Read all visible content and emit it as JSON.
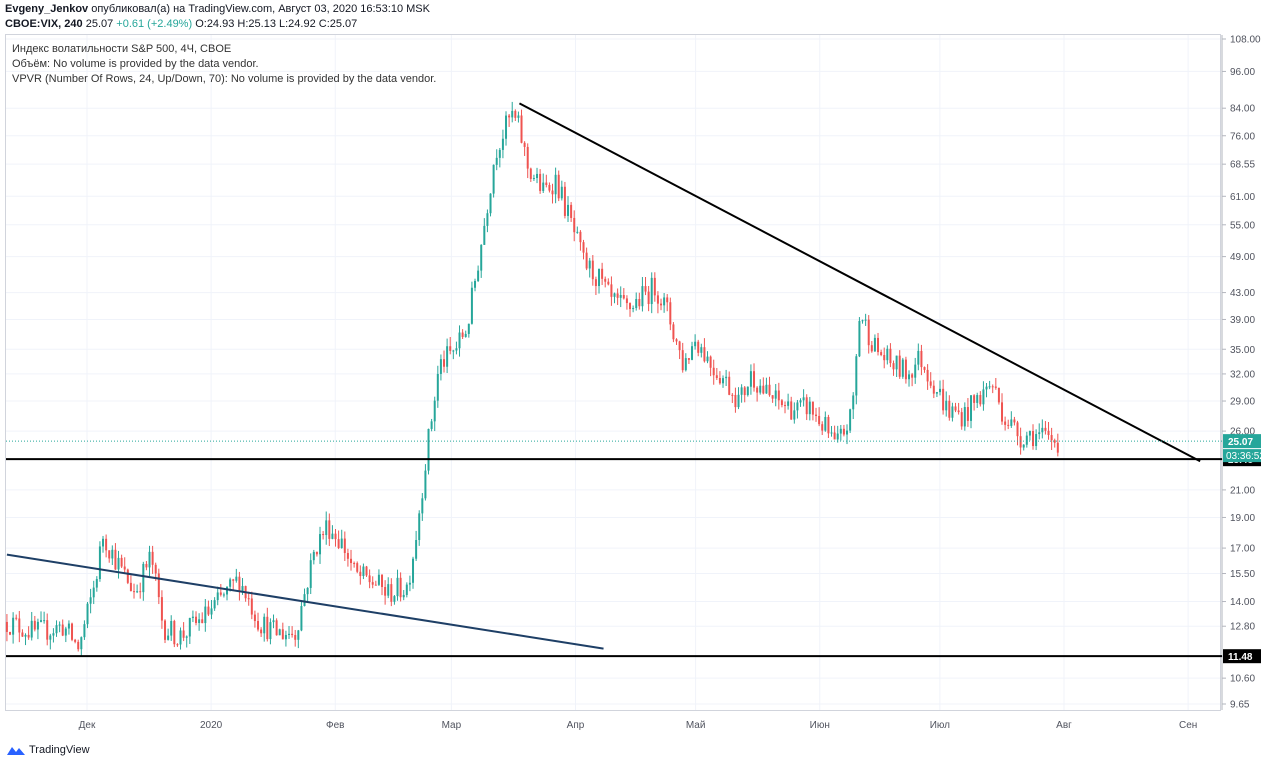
{
  "header": {
    "author": "Evgeny_Jenkov",
    "published_text": "опубликовал(а) на TradingView.com, Август 03, 2020 16:53:10 MSK",
    "symbol": "CBOE:VIX, 240",
    "last": "25.07",
    "change": "+0.61 (+2.49%)",
    "open": "O:24.93",
    "high": "H:25.13",
    "low": "L:24.92",
    "close": "C:25.07"
  },
  "legend": {
    "title": "Индекс волатильности S&P 500, 4Ч, CBOE",
    "volume": "Объём: No volume is provided by the data vendor.",
    "vpvr": "VPVR (Number Of Rows, 24, Up/Down, 70): No volume is provided by the data vendor."
  },
  "footer": {
    "brand": "TradingView"
  },
  "colors": {
    "up": "#26a69a",
    "down": "#ef5350",
    "trend": "#000000",
    "trend2": "#1e3f66",
    "price_label": "#26a69a"
  },
  "chart_data": {
    "type": "candlestick",
    "y_scale": "log",
    "ylim": [
      9.2,
      110
    ],
    "y_ticks": [
      "108.00",
      "96.00",
      "84.00",
      "76.00",
      "68.55",
      "61.00",
      "55.00",
      "49.00",
      "43.00",
      "39.00",
      "35.00",
      "32.00",
      "29.00",
      "26.00",
      "23.48",
      "21.00",
      "19.00",
      "17.00",
      "15.50",
      "14.00",
      "12.80",
      "11.48",
      "10.60",
      "9.65"
    ],
    "x_ticks": [
      "Дек",
      "2020",
      "Фев",
      "Мар",
      "Апр",
      "Май",
      "Июн",
      "Июл",
      "Авг",
      "Сен"
    ],
    "x_tick_dates": [
      "2019-12-01",
      "2020-01-01",
      "2020-02-01",
      "2020-03-01",
      "2020-04-01",
      "2020-05-01",
      "2020-06-01",
      "2020-07-01",
      "2020-08-01",
      "2020-09-01"
    ],
    "last_price": "25.07",
    "countdown": "03:36:52",
    "horizontal_levels": [
      {
        "value": 23.48,
        "label": "23.48"
      },
      {
        "value": 11.48,
        "label": "11.48"
      }
    ],
    "trendlines": [
      {
        "from": {
          "date": "2020-03-18",
          "value": 85.5
        },
        "to": {
          "date": "2020-09-04",
          "value": 23.3
        },
        "color": "#000000"
      },
      {
        "from": {
          "date": "2019-11-11",
          "value": 16.6
        },
        "to": {
          "date": "2020-04-08",
          "value": 11.8
        },
        "color": "#1e3f66"
      }
    ],
    "price_path": [
      [
        "2019-11-11",
        13.0
      ],
      [
        "2019-11-18",
        12.5
      ],
      [
        "2019-11-25",
        12.8
      ],
      [
        "2019-11-29",
        11.8
      ],
      [
        "2019-12-03",
        15.0
      ],
      [
        "2019-12-05",
        17.8
      ],
      [
        "2019-12-10",
        15.5
      ],
      [
        "2019-12-13",
        14.5
      ],
      [
        "2019-12-17",
        16.5
      ],
      [
        "2019-12-20",
        12.8
      ],
      [
        "2019-12-24",
        12.3
      ],
      [
        "2019-12-30",
        13.2
      ],
      [
        "2020-01-03",
        14.0
      ],
      [
        "2020-01-08",
        15.2
      ],
      [
        "2020-01-13",
        13.0
      ],
      [
        "2020-01-17",
        12.5
      ],
      [
        "2020-01-22",
        12.5
      ],
      [
        "2020-01-27",
        17.0
      ],
      [
        "2020-01-30",
        18.5
      ],
      [
        "2020-02-03",
        17.2
      ],
      [
        "2020-02-06",
        15.4
      ],
      [
        "2020-02-11",
        15.0
      ],
      [
        "2020-02-14",
        14.4
      ],
      [
        "2020-02-19",
        14.8
      ],
      [
        "2020-02-21",
        17.5
      ],
      [
        "2020-02-24",
        24.5
      ],
      [
        "2020-02-27",
        33.0
      ],
      [
        "2020-03-02",
        35.0
      ],
      [
        "2020-03-05",
        38.0
      ],
      [
        "2020-03-09",
        54.0
      ],
      [
        "2020-03-12",
        72.0
      ],
      [
        "2020-03-16",
        82.0
      ],
      [
        "2020-03-18",
        78.0
      ],
      [
        "2020-03-20",
        68.0
      ],
      [
        "2020-03-24",
        62.0
      ],
      [
        "2020-03-27",
        65.0
      ],
      [
        "2020-03-31",
        55.0
      ],
      [
        "2020-04-03",
        48.0
      ],
      [
        "2020-04-07",
        45.0
      ],
      [
        "2020-04-10",
        41.5
      ],
      [
        "2020-04-14",
        40.5
      ],
      [
        "2020-04-17",
        42.0
      ],
      [
        "2020-04-21",
        44.0
      ],
      [
        "2020-04-24",
        40.0
      ],
      [
        "2020-04-28",
        33.0
      ],
      [
        "2020-05-01",
        36.5
      ],
      [
        "2020-05-05",
        33.0
      ],
      [
        "2020-05-08",
        31.5
      ],
      [
        "2020-05-12",
        29.0
      ],
      [
        "2020-05-15",
        32.0
      ],
      [
        "2020-05-19",
        29.5
      ],
      [
        "2020-05-22",
        28.8
      ],
      [
        "2020-05-27",
        28.0
      ],
      [
        "2020-05-29",
        28.5
      ],
      [
        "2020-06-02",
        26.5
      ],
      [
        "2020-06-05",
        24.5
      ],
      [
        "2020-06-09",
        27.5
      ],
      [
        "2020-06-11",
        40.0
      ],
      [
        "2020-06-15",
        35.0
      ],
      [
        "2020-06-18",
        33.5
      ],
      [
        "2020-06-23",
        32.0
      ],
      [
        "2020-06-26",
        34.0
      ],
      [
        "2020-06-30",
        30.5
      ],
      [
        "2020-07-03",
        28.0
      ],
      [
        "2020-07-07",
        27.5
      ],
      [
        "2020-07-10",
        29.0
      ],
      [
        "2020-07-14",
        31.0
      ],
      [
        "2020-07-17",
        27.5
      ],
      [
        "2020-07-21",
        25.5
      ],
      [
        "2020-07-24",
        25.8
      ],
      [
        "2020-07-28",
        25.2
      ],
      [
        "2020-07-31",
        25.07
      ]
    ]
  }
}
